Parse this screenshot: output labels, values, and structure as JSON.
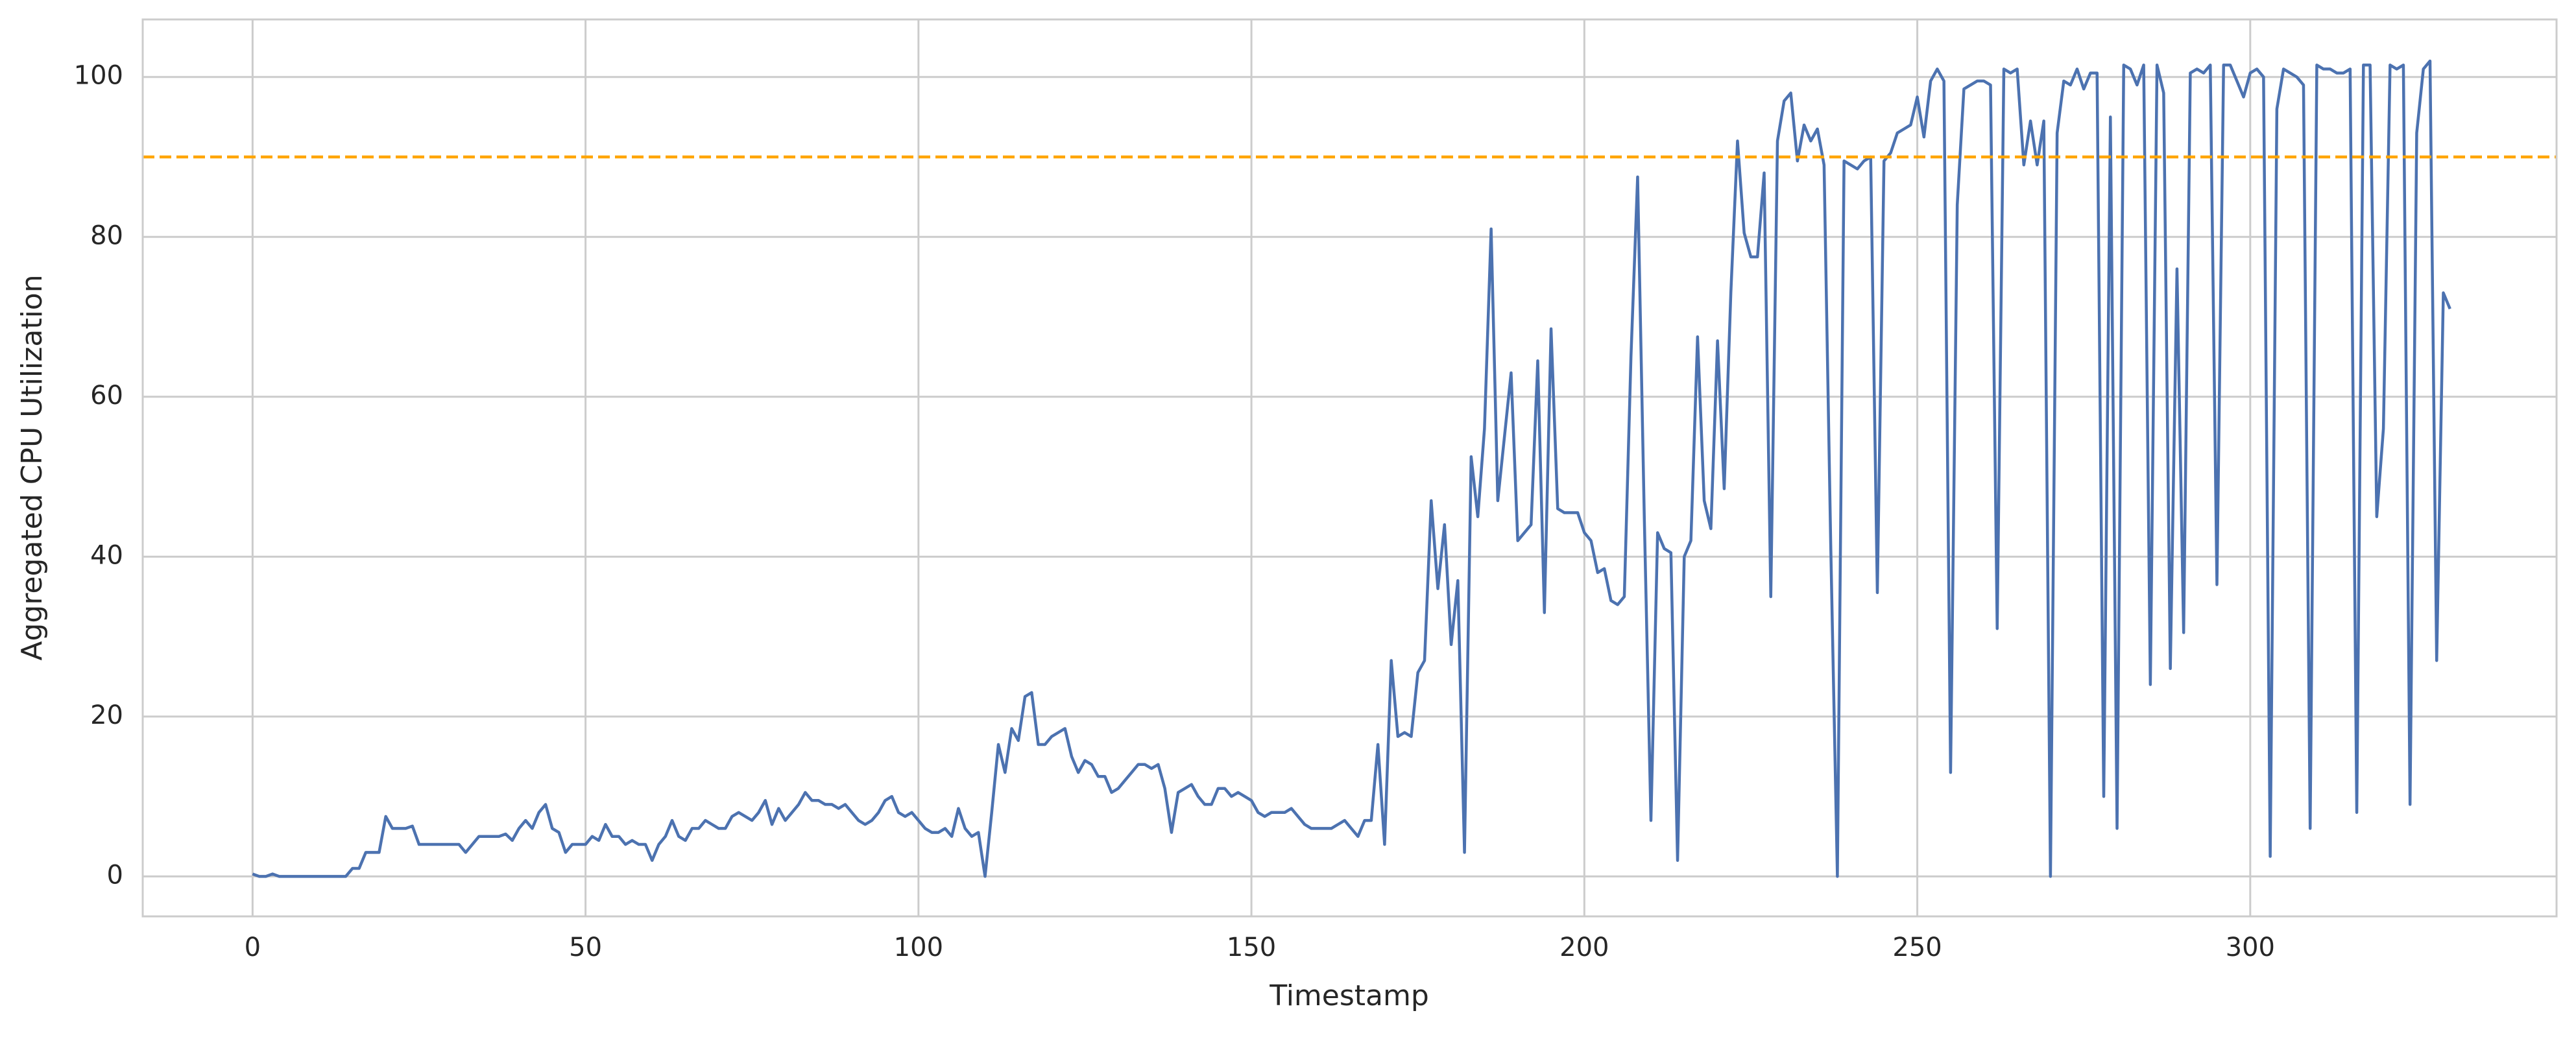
{
  "chart_data": {
    "type": "line",
    "xlabel": "Timestamp",
    "ylabel": "Aggregated CPU Utilization",
    "color": "#4c72b0",
    "grid": true,
    "xlim": [
      -16.5,
      346
    ],
    "ylim": [
      -5,
      107.2
    ],
    "xticks": [
      0,
      50,
      100,
      150,
      200,
      250,
      300
    ],
    "yticks": [
      0,
      20,
      40,
      60,
      80,
      100
    ],
    "hlines": [
      {
        "y": 90,
        "color": "#ffa500",
        "style": "dashed"
      }
    ],
    "x": [
      0,
      1,
      2,
      3,
      4,
      5,
      6,
      7,
      8,
      9,
      10,
      11,
      12,
      13,
      14,
      15,
      16,
      17,
      18,
      19,
      20,
      21,
      22,
      23,
      24,
      25,
      26,
      27,
      28,
      29,
      30,
      31,
      32,
      33,
      34,
      35,
      36,
      37,
      38,
      39,
      40,
      41,
      42,
      43,
      44,
      45,
      46,
      47,
      48,
      49,
      50,
      51,
      52,
      53,
      54,
      55,
      56,
      57,
      58,
      59,
      60,
      61,
      62,
      63,
      64,
      65,
      66,
      67,
      68,
      69,
      70,
      71,
      72,
      73,
      74,
      75,
      76,
      77,
      78,
      79,
      80,
      81,
      82,
      83,
      84,
      85,
      86,
      87,
      88,
      89,
      90,
      91,
      92,
      93,
      94,
      95,
      96,
      97,
      98,
      99,
      100,
      101,
      102,
      103,
      104,
      105,
      106,
      107,
      108,
      109,
      110,
      111,
      112,
      113,
      114,
      115,
      116,
      117,
      118,
      119,
      120,
      121,
      122,
      123,
      124,
      125,
      126,
      127,
      128,
      129,
      130,
      131,
      132,
      133,
      134,
      135,
      136,
      137,
      138,
      139,
      140,
      141,
      142,
      143,
      144,
      145,
      146,
      147,
      148,
      149,
      150,
      151,
      152,
      153,
      154,
      155,
      156,
      157,
      158,
      159,
      160,
      161,
      162,
      163,
      164,
      165,
      166,
      167,
      168,
      169,
      170,
      171,
      172,
      173,
      174,
      175,
      176,
      177,
      178,
      179,
      180,
      181,
      182,
      183,
      184,
      185,
      186,
      187,
      188,
      189,
      190,
      191,
      192,
      193,
      194,
      195,
      196,
      197,
      198,
      199,
      200,
      201,
      202,
      203,
      204,
      205,
      206,
      207,
      208,
      209,
      210,
      211,
      212,
      213,
      214,
      215,
      216,
      217,
      218,
      219,
      220,
      221,
      222,
      223,
      224,
      225,
      226,
      227,
      228,
      229,
      230,
      231,
      232,
      233,
      234,
      235,
      236,
      237,
      238,
      239,
      240,
      241,
      242,
      243,
      244,
      245,
      246,
      247,
      248,
      249,
      250,
      251,
      252,
      253,
      254,
      255,
      256,
      257,
      258,
      259,
      260,
      261,
      262,
      263,
      264,
      265,
      266,
      267,
      268,
      269,
      270,
      271,
      272,
      273,
      274,
      275,
      276,
      277,
      278,
      279,
      280,
      281,
      282,
      283,
      284,
      285,
      286,
      287,
      288,
      289,
      290,
      291,
      292,
      293,
      294,
      295,
      296,
      297,
      298,
      299,
      300,
      301,
      302,
      303,
      304,
      305,
      306,
      307,
      308,
      309,
      310,
      311,
      312,
      313,
      314,
      315,
      316,
      317,
      318,
      319,
      320,
      321,
      322,
      323,
      324,
      325,
      326,
      327,
      328,
      329,
      330
    ],
    "values": [
      0.3,
      0,
      0,
      0.3,
      0,
      0,
      0,
      0,
      0,
      0,
      0,
      0,
      0,
      0,
      0,
      1,
      1,
      3,
      3,
      3,
      7.5,
      6,
      6,
      6,
      6.3,
      4,
      4,
      4,
      4,
      4,
      4,
      4,
      3,
      4,
      5,
      5,
      5,
      5,
      5.3,
      4.5,
      6,
      7,
      6,
      8,
      9,
      6,
      5.5,
      3,
      4,
      4,
      4,
      5,
      4.5,
      6.5,
      5,
      5,
      4,
      4.5,
      4,
      4,
      2,
      4,
      5,
      7,
      5,
      4.5,
      6,
      6,
      7,
      6.5,
      6,
      6,
      7.5,
      8,
      7.5,
      7,
      8,
      9.5,
      6.5,
      8.5,
      7,
      8,
      9,
      10.5,
      9.5,
      9.5,
      9,
      9,
      8.5,
      9,
      8,
      7,
      6.5,
      7,
      8,
      9.5,
      10,
      8,
      7.5,
      8,
      7,
      6,
      5.5,
      5.5,
      6,
      5,
      8.5,
      6,
      5,
      5.5,
      0,
      8,
      16.5,
      13,
      18.5,
      17,
      22.5,
      23,
      16.5,
      16.5,
      17.5,
      18,
      18.5,
      15,
      13,
      14.5,
      14,
      12.5,
      12.5,
      10.5,
      11,
      12,
      13,
      14,
      14,
      13.5,
      14,
      11,
      5.5,
      10.5,
      11,
      11.5,
      10,
      9,
      9,
      11,
      11,
      10,
      10.5,
      10,
      9.5,
      8,
      7.5,
      8,
      8,
      8,
      8.5,
      7.5,
      6.5,
      6,
      6,
      6,
      6,
      6.5,
      7,
      6,
      5,
      7,
      7,
      16.5,
      4,
      27,
      17.5,
      18,
      17.5,
      25.5,
      27,
      47,
      36,
      44,
      29,
      37,
      3,
      52.5,
      45,
      56,
      81,
      47,
      55,
      63,
      42,
      43,
      44,
      64.5,
      33,
      68.5,
      46,
      45.5,
      45.5,
      45.5,
      43,
      42,
      38,
      38.5,
      34.5,
      34,
      35,
      65,
      87.5,
      45,
      7,
      43,
      41,
      40.5,
      2,
      40,
      42,
      67.5,
      47,
      43.5,
      67,
      48.5,
      73,
      92,
      80.5,
      77.5,
      77.5,
      88,
      35,
      92,
      97,
      98,
      89.5,
      94,
      92,
      93.5,
      89,
      41.5,
      0,
      89.5,
      89,
      88.5,
      89.5,
      90,
      35.5,
      89.5,
      90.5,
      93,
      93.5,
      94,
      97.5,
      92.5,
      99.5,
      101,
      99.5,
      13,
      84,
      98.5,
      99,
      99.5,
      99.5,
      99,
      31,
      101,
      100.5,
      101,
      89,
      94.5,
      89,
      94.5,
      0,
      93,
      99.5,
      99,
      101,
      98.5,
      100.5,
      100.5,
      10,
      95,
      6,
      101.5,
      101,
      99,
      101.5,
      24,
      101.5,
      98,
      26,
      76,
      30.5,
      100.5,
      101,
      100.5,
      101.5,
      36.5,
      101.5,
      101.5,
      99.5,
      97.5,
      100.5,
      101,
      100,
      2.5,
      96,
      101,
      100.5,
      100,
      99,
      6,
      101.5,
      101,
      101,
      100.5,
      100.5,
      101,
      8,
      101.5,
      101.5,
      45,
      56,
      101.5,
      101,
      101.5,
      9,
      93,
      101,
      102,
      27,
      73,
      71
    ]
  }
}
